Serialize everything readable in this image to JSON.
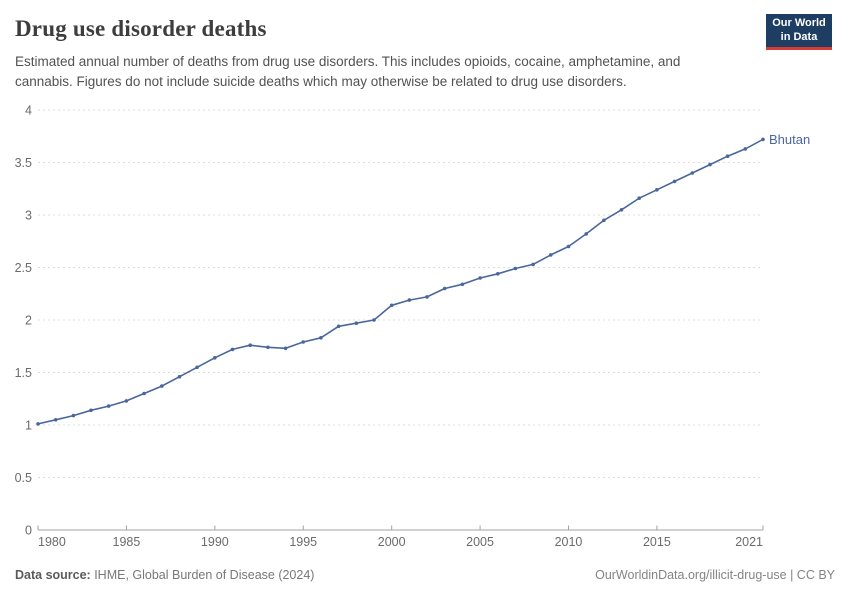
{
  "header": {
    "title": "Drug use disorder deaths",
    "subtitle": "Estimated annual number of deaths from drug use disorders. This includes opioids, cocaine, amphetamine, and cannabis. Figures do not include suicide deaths which may otherwise be related to drug use disorders.",
    "logo": {
      "line1": "Our World",
      "line2": "in Data",
      "bg_color": "#1d3d63",
      "accent_color": "#d73c34"
    }
  },
  "chart_data": {
    "type": "line",
    "title": "Drug use disorder deaths",
    "xlabel": "",
    "ylabel": "",
    "xlim": [
      1980,
      2021
    ],
    "ylim": [
      0,
      4
    ],
    "x_ticks": [
      1980,
      1985,
      1990,
      1995,
      2000,
      2005,
      2010,
      2015,
      2021
    ],
    "y_ticks": [
      0,
      0.5,
      1,
      1.5,
      2,
      2.5,
      3,
      3.5,
      4
    ],
    "y_tick_labels": [
      "0",
      "0.5",
      "1",
      "1.5",
      "2",
      "2.5",
      "3",
      "3.5",
      "4"
    ],
    "grid": "horizontal-dashed",
    "legend_position": "end-of-line-label",
    "x": [
      1980,
      1981,
      1982,
      1983,
      1984,
      1985,
      1986,
      1987,
      1988,
      1989,
      1990,
      1991,
      1992,
      1993,
      1994,
      1995,
      1996,
      1997,
      1998,
      1999,
      2000,
      2001,
      2002,
      2003,
      2004,
      2005,
      2006,
      2007,
      2008,
      2009,
      2010,
      2011,
      2012,
      2013,
      2014,
      2015,
      2016,
      2017,
      2018,
      2019,
      2020,
      2021
    ],
    "series": [
      {
        "name": "Bhutan",
        "color": "#4a679b",
        "values": [
          1.01,
          1.05,
          1.09,
          1.14,
          1.18,
          1.23,
          1.3,
          1.37,
          1.46,
          1.55,
          1.64,
          1.72,
          1.76,
          1.74,
          1.73,
          1.79,
          1.83,
          1.94,
          1.97,
          2.0,
          2.14,
          2.19,
          2.22,
          2.3,
          2.34,
          2.4,
          2.44,
          2.49,
          2.53,
          2.62,
          2.7,
          2.82,
          2.95,
          3.05,
          3.16,
          3.24,
          3.32,
          3.4,
          3.48,
          3.56,
          3.63,
          3.72
        ]
      }
    ],
    "style": {
      "grid_color": "#dddddd",
      "axis_color": "#a3a3a3",
      "tick_label_color": "#6b6b6b"
    }
  },
  "footer": {
    "source_label": "Data source:",
    "source_text": " IHME, Global Burden of Disease (2024)",
    "link_text": "OurWorldinData.org/illicit-drug-use | CC BY"
  }
}
